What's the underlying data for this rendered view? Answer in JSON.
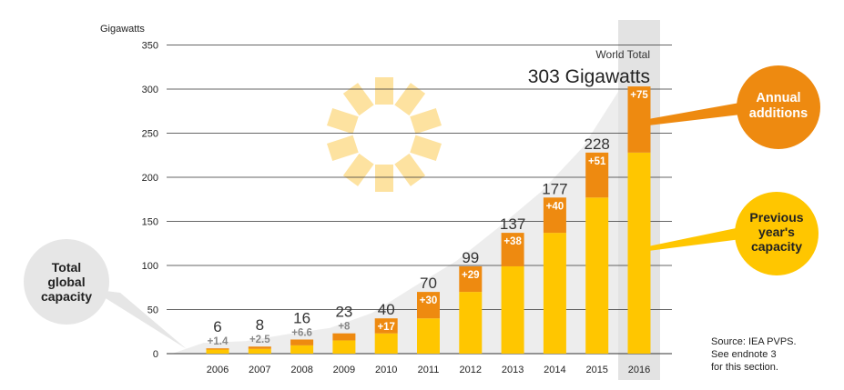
{
  "chart_data": {
    "type": "bar",
    "stacked": true,
    "ylabel": "Gigawatts",
    "ylim": [
      0,
      350
    ],
    "yticks": [
      0,
      50,
      100,
      150,
      200,
      250,
      300,
      350
    ],
    "grid": true,
    "categories": [
      "2006",
      "2007",
      "2008",
      "2009",
      "2010",
      "2011",
      "2012",
      "2013",
      "2014",
      "2015",
      "2016"
    ],
    "series": [
      {
        "name": "Previous year's capacity",
        "color": "#FFC600",
        "values": [
          4.6,
          5.5,
          9.4,
          15,
          23,
          40,
          70,
          99,
          137,
          177,
          228
        ]
      },
      {
        "name": "Annual additions",
        "color": "#EE8A10",
        "values": [
          1.4,
          2.5,
          6.6,
          8,
          17,
          30,
          29,
          38,
          40,
          51,
          75
        ]
      }
    ],
    "totals": [
      6,
      8,
      16,
      23,
      40,
      70,
      99,
      137,
      177,
      228,
      303
    ],
    "total_labels": [
      "6",
      "8",
      "16",
      "23",
      "40",
      "70",
      "99",
      "137",
      "177",
      "228",
      ""
    ],
    "addition_labels": [
      "+1.4",
      "+2.5",
      "+6.6",
      "+8",
      "+17",
      "+30",
      "+29",
      "+38",
      "+40",
      "+51",
      "+75"
    ],
    "highlight_category": "2016",
    "world_total_label": "World Total",
    "world_total_value": "303 Gigawatts",
    "bubbles": {
      "total_capacity": [
        "Total",
        "global",
        "capacity"
      ],
      "annual_additions": [
        "Annual",
        "additions"
      ],
      "previous_capacity": [
        "Previous",
        "year's",
        "capacity"
      ]
    },
    "source_lines": [
      "Source: IEA PVPS.",
      "See endnote 3",
      "for this section."
    ]
  },
  "colors": {
    "previous": "#FFC600",
    "additions": "#EE8A10",
    "addition_label_outside": "#888888",
    "highlight": "#E3E3E3",
    "bubble_gray": "#E6E6E6",
    "sun": "#FDE2A0"
  }
}
